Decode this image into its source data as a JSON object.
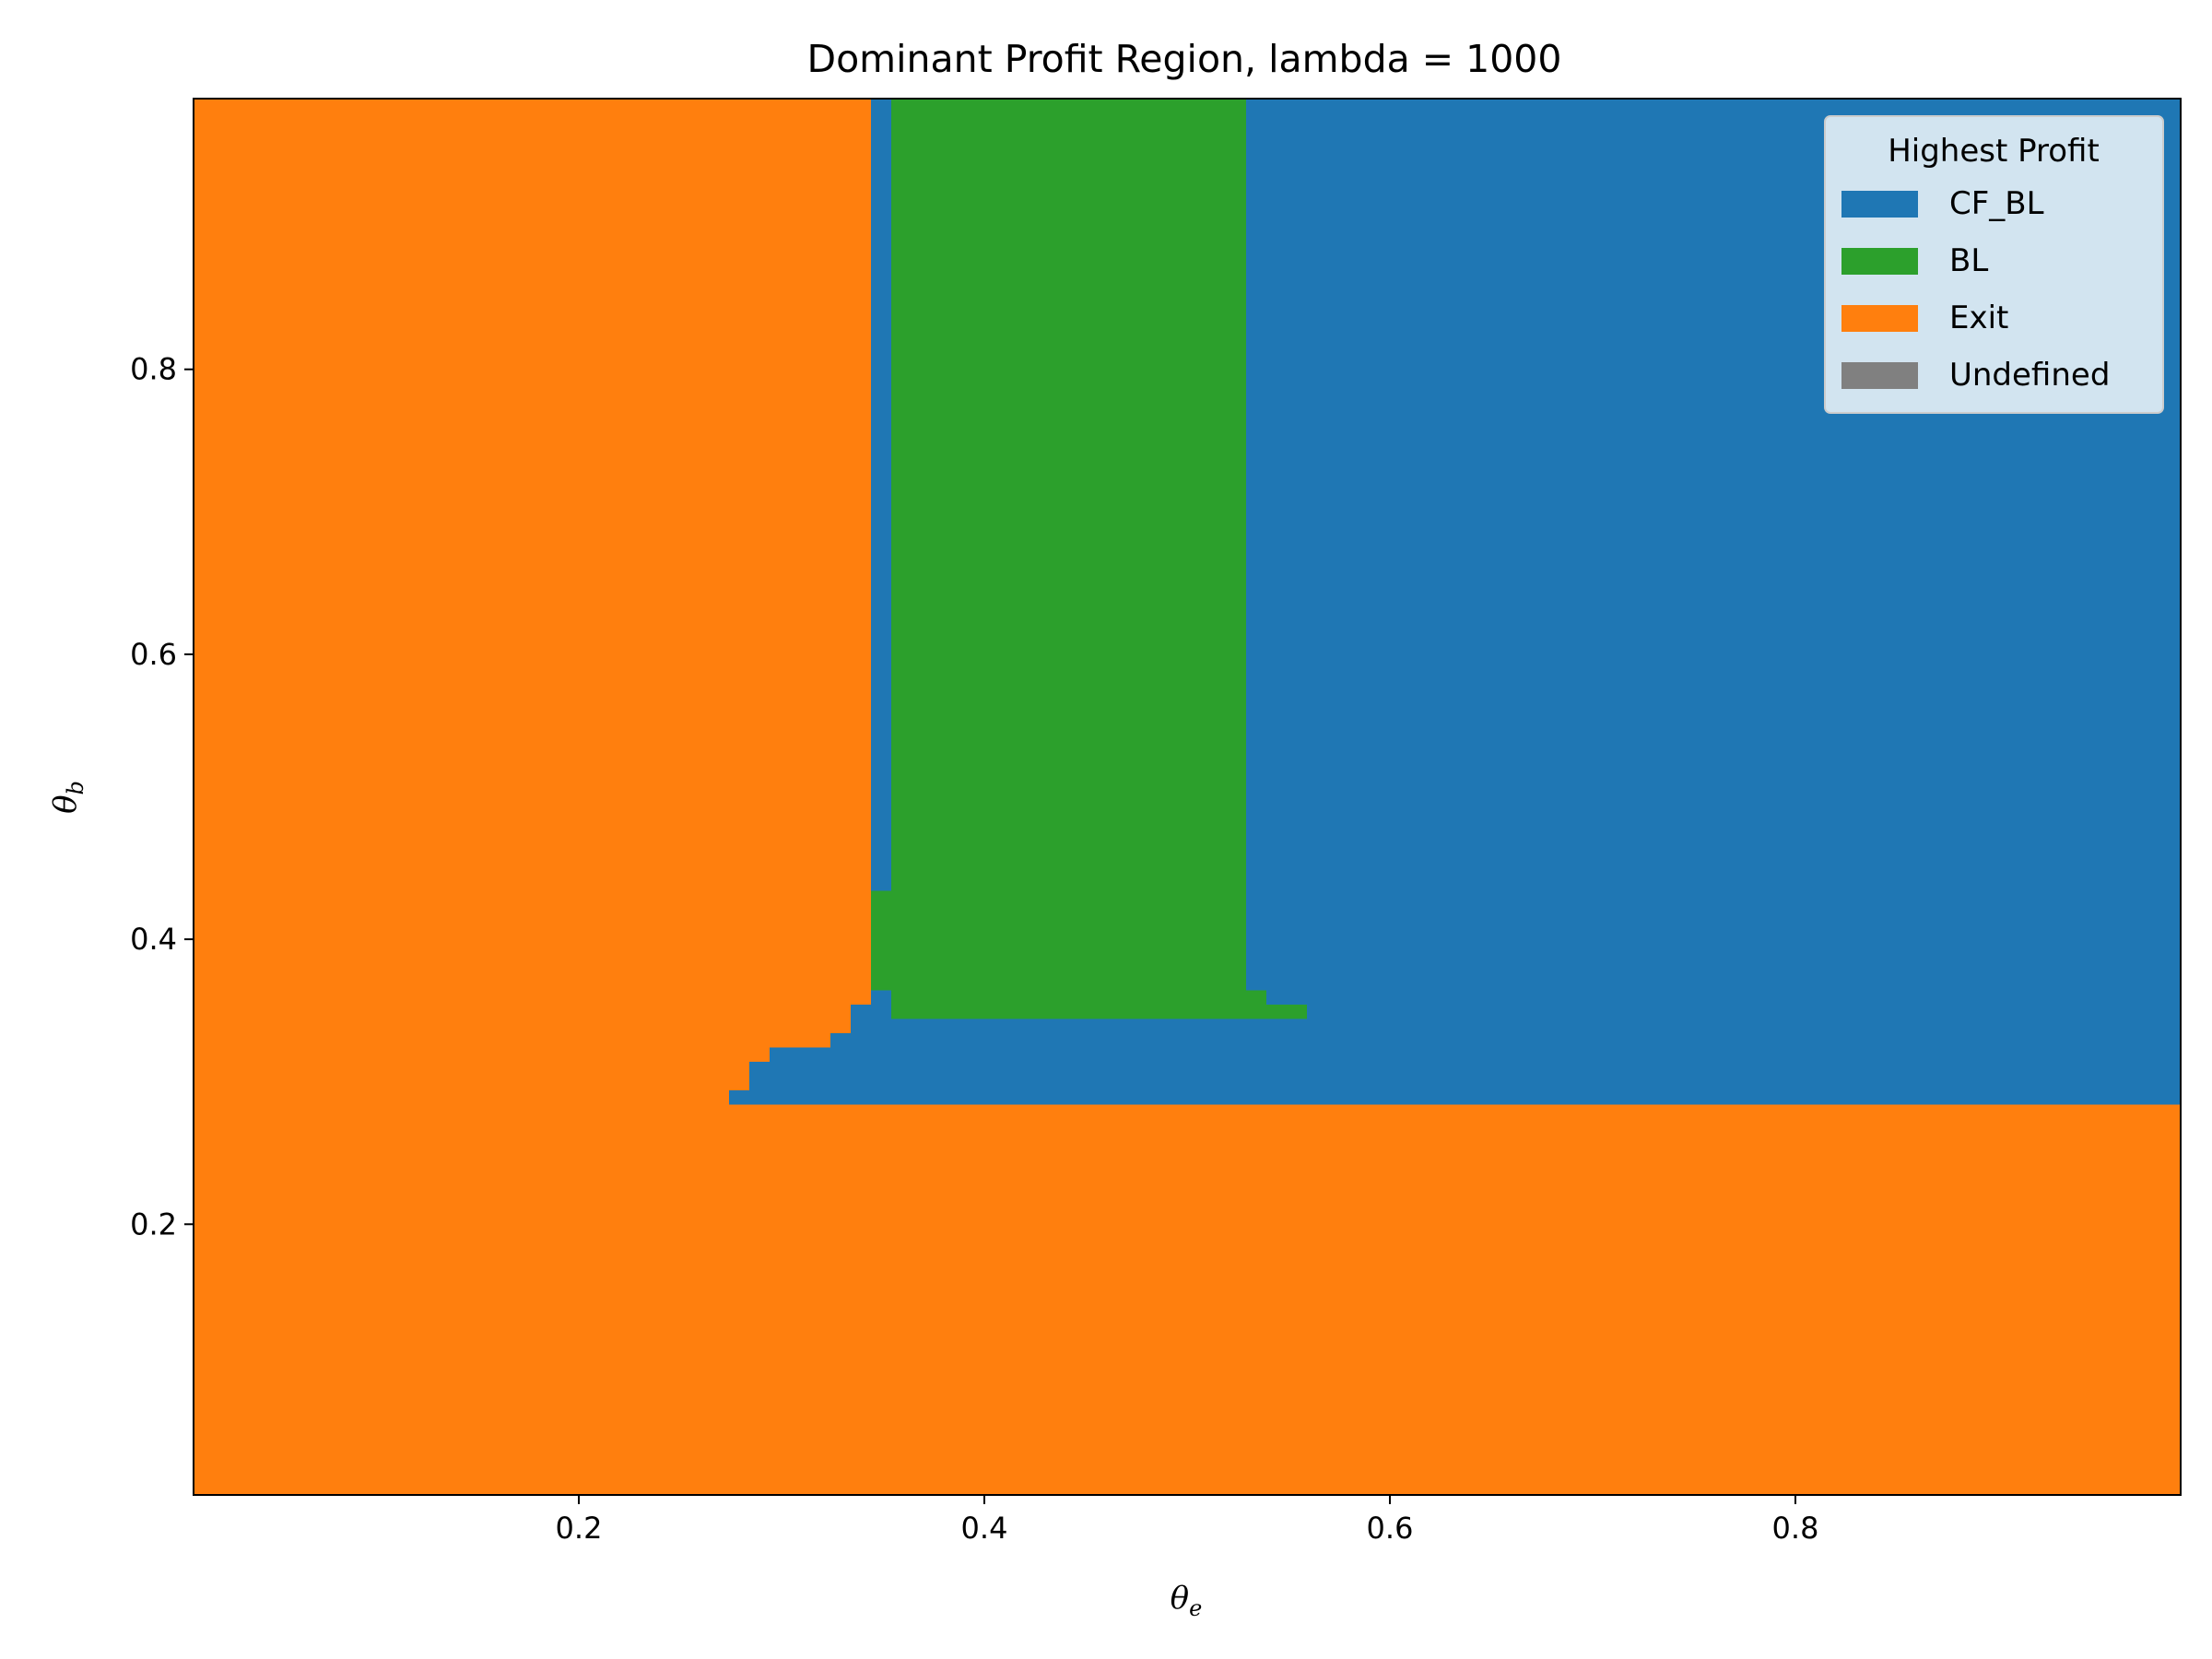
{
  "chart_data": {
    "type": "heatmap",
    "title": "Dominant Profit Region, lambda = 1000",
    "xlabel": {
      "base": "θ",
      "sub": "e"
    },
    "ylabel": {
      "base": "θ",
      "sub": "b"
    },
    "xlim": [
      0.01,
      0.99
    ],
    "ylim": [
      0.01,
      0.99
    ],
    "x_ticks": [
      0.2,
      0.4,
      0.6,
      0.8
    ],
    "x_tick_labels": [
      "0.2",
      "0.4",
      "0.6",
      "0.8"
    ],
    "y_ticks": [
      0.2,
      0.4,
      0.6,
      0.8
    ],
    "y_tick_labels": [
      "0.2",
      "0.4",
      "0.6",
      "0.8"
    ],
    "legend": {
      "title": "Highest Profit",
      "placement": "top-right",
      "entries": [
        {
          "label": "CF_BL",
          "color": "#1f77b4"
        },
        {
          "label": "BL",
          "color": "#2ca02c"
        },
        {
          "label": "Exit",
          "color": "#ff7f0e"
        },
        {
          "label": "Undefined",
          "color": "#808080"
        }
      ]
    },
    "background_category": "Exit",
    "regions": [
      {
        "category": "CF_BL",
        "x0": 0.274,
        "x1": 0.99,
        "y0": 0.284,
        "y1": 0.294
      },
      {
        "category": "CF_BL",
        "x0": 0.284,
        "x1": 0.99,
        "y0": 0.294,
        "y1": 0.314
      },
      {
        "category": "CF_BL",
        "x0": 0.294,
        "x1": 0.99,
        "y0": 0.314,
        "y1": 0.324
      },
      {
        "category": "CF_BL",
        "x0": 0.324,
        "x1": 0.99,
        "y0": 0.324,
        "y1": 0.334
      },
      {
        "category": "CF_BL",
        "x0": 0.334,
        "x1": 0.99,
        "y0": 0.334,
        "y1": 0.354
      },
      {
        "category": "CF_BL",
        "x0": 0.344,
        "x1": 0.99,
        "y0": 0.354,
        "y1": 0.364
      },
      {
        "category": "CF_BL",
        "x0": 0.354,
        "x1": 0.99,
        "y0": 0.364,
        "y1": 0.99
      },
      {
        "category": "CF_BL",
        "x0": 0.344,
        "x1": 0.354,
        "y0": 0.434,
        "y1": 0.99
      },
      {
        "category": "BL",
        "x0": 0.354,
        "x1": 0.529,
        "y0": 0.344,
        "y1": 0.99
      },
      {
        "category": "BL",
        "x0": 0.344,
        "x1": 0.354,
        "y0": 0.364,
        "y1": 0.434
      },
      {
        "category": "BL",
        "x0": 0.529,
        "x1": 0.539,
        "y0": 0.344,
        "y1": 0.364
      },
      {
        "category": "BL",
        "x0": 0.539,
        "x1": 0.559,
        "y0": 0.344,
        "y1": 0.354
      }
    ]
  }
}
